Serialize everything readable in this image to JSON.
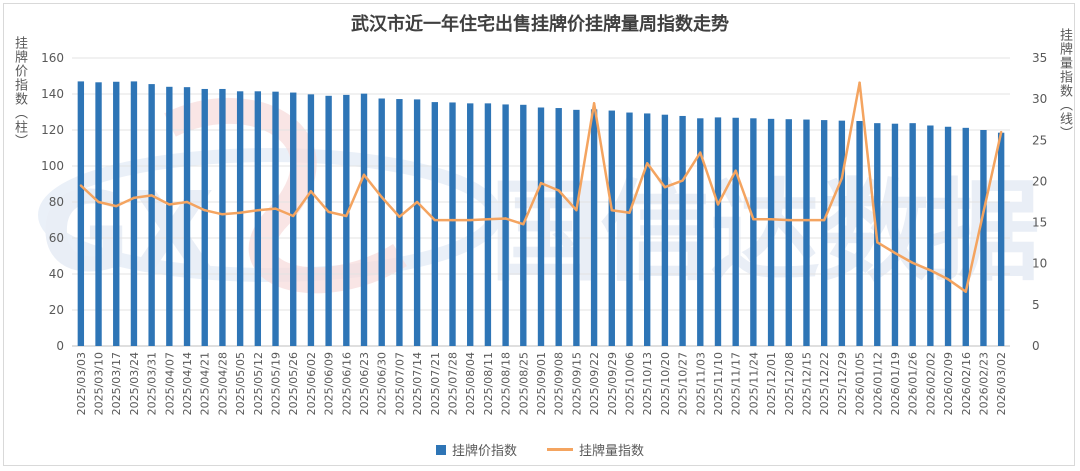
{
  "chart_data": {
    "type": "bar+line",
    "title": "武汉市近一年住宅出售挂牌价挂牌量周指数走势",
    "ylabel_left": "挂牌价指数（柱）",
    "ylabel_right": "挂牌量指数（线）",
    "ylim_left": [
      0,
      160
    ],
    "ylim_right": [
      0,
      35
    ],
    "yticks_left": [
      "0",
      "20",
      "40",
      "60",
      "80",
      "100",
      "120",
      "140",
      "160"
    ],
    "yticks_right": [
      "0",
      "5",
      "10",
      "15",
      "20",
      "25",
      "30",
      "35"
    ],
    "categories": [
      "2025/03/03",
      "2025/03/10",
      "2025/03/17",
      "2025/03/24",
      "2025/03/31",
      "2025/04/07",
      "2025/04/14",
      "2025/04/21",
      "2025/04/28",
      "2025/05/05",
      "2025/05/12",
      "2025/05/19",
      "2025/05/26",
      "2025/06/02",
      "2025/06/09",
      "2025/06/16",
      "2025/06/23",
      "2025/06/30",
      "2025/07/07",
      "2025/07/14",
      "2025/07/21",
      "2025/07/28",
      "2025/08/04",
      "2025/08/11",
      "2025/08/18",
      "2025/08/25",
      "2025/09/01",
      "2025/09/08",
      "2025/09/15",
      "2025/09/22",
      "2025/09/29",
      "2025/10/06",
      "2025/10/13",
      "2025/10/20",
      "2025/10/27",
      "2025/11/03",
      "2025/11/10",
      "2025/11/17",
      "2025/11/24",
      "2025/12/01",
      "2025/12/08",
      "2025/12/15",
      "2025/12/22",
      "2025/12/29",
      "2026/01/05",
      "2026/01/12",
      "2026/01/19",
      "2026/01/26",
      "2026/02/02",
      "2026/02/09",
      "2026/02/16",
      "2026/02/23",
      "2026/03/02"
    ],
    "series": [
      {
        "name": "挂牌价指数",
        "type": "bar",
        "axis": "left",
        "color": "#2e75b6",
        "values": [
          147,
          146.5,
          146.8,
          147,
          145.5,
          144,
          143.8,
          142.8,
          142.8,
          141.5,
          141.5,
          141.3,
          140.8,
          139.8,
          139,
          139.5,
          140.2,
          137.5,
          137.2,
          137,
          135.5,
          135.3,
          134.8,
          134.8,
          134.2,
          134,
          132.5,
          132.2,
          131.2,
          131.5,
          130.8,
          129.7,
          129.2,
          128.5,
          127.8,
          126.5,
          127,
          126.8,
          126.5,
          126.2,
          126,
          125.8,
          125.5,
          125.2,
          125,
          123.8,
          123.5,
          123.8,
          122.5,
          121.8,
          121.2,
          120,
          118.5
        ]
      },
      {
        "name": "挂牌量指数",
        "type": "line",
        "axis": "right",
        "color": "#f4a460",
        "values": [
          19.5,
          17.5,
          17,
          18,
          18.3,
          17.2,
          17.5,
          16.5,
          16,
          16.2,
          16.5,
          16.7,
          15.8,
          18.8,
          16.3,
          15.8,
          20.8,
          18.1,
          15.7,
          17.5,
          15.3,
          15.3,
          15.3,
          15.4,
          15.5,
          14.8,
          19.8,
          18.9,
          16.5,
          29.5,
          16.5,
          16.2,
          22.2,
          19.3,
          20.1,
          23.5,
          17.2,
          21.3,
          15.4,
          15.4,
          15.3,
          15.3,
          15.3,
          20.4,
          32,
          12.6,
          11.3,
          10.1,
          9.2,
          8.1,
          6.6,
          16.3,
          26
        ]
      }
    ],
    "legend": [
      "挂牌价指数",
      "挂牌量指数"
    ],
    "legend_position": "bottom",
    "grid": true
  },
  "watermark": {
    "letters": "GX",
    "text": "国信达数据"
  }
}
